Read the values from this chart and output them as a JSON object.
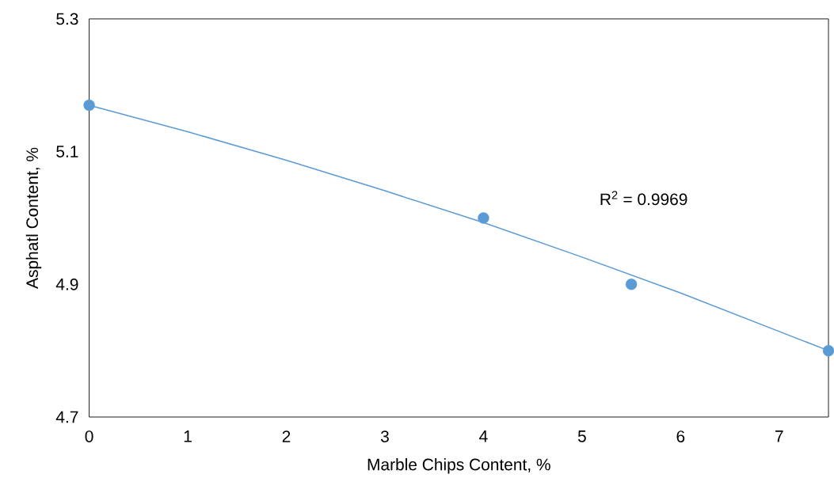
{
  "chart_data": {
    "type": "scatter",
    "xlabel": "Marble Chips Content, %",
    "ylabel": "Asphatl Content, %",
    "x": [
      0,
      4,
      5.5,
      7.5
    ],
    "series": [
      {
        "color": "#5b9bd5",
        "marker": "circle",
        "values": [
          5.17,
          5.0,
          4.9,
          4.8
        ]
      },
      {
        "type": "line",
        "marker": "none",
        "color": "#5b9bd5",
        "x": [
          0,
          1,
          2,
          3,
          4,
          5,
          6,
          7,
          7.5
        ],
        "values": [
          5.17,
          5.13,
          5.087,
          5.041,
          4.993,
          4.941,
          4.887,
          4.829,
          4.8
        ]
      }
    ],
    "annotations": [
      "R$^{2}$ = 0.9969"
    ],
    "xlim": [
      0,
      7.5
    ],
    "xticks": [
      0,
      1,
      2,
      3,
      4,
      5,
      6,
      7
    ],
    "ylim": [
      4.7,
      5.3
    ],
    "yticks": [
      4.7,
      4.9,
      5.1,
      5.3
    ],
    "grid": false
  }
}
